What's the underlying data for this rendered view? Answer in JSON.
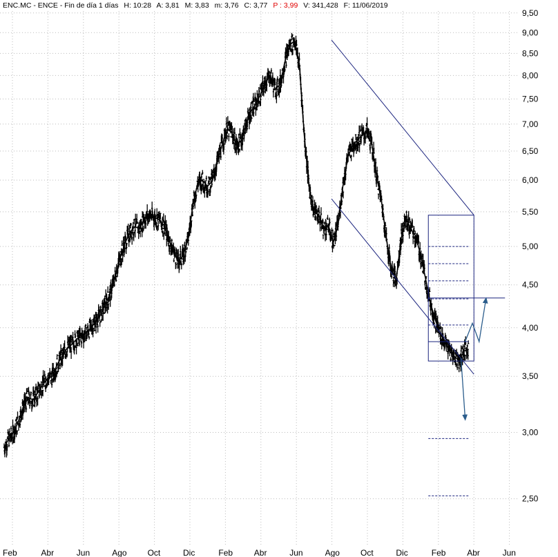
{
  "header": {
    "ticker": "ENC.MC - ENCE - Fin de día 1 días",
    "high": "H: 10:28",
    "ask": "A: 3,81",
    "mid": "M: 3,83",
    "low": "m: 3,76",
    "close": "C: 3,77",
    "price": "P : 3,99",
    "volume": "V: 341,428",
    "date": "F: 11/06/2019"
  },
  "chart_data": {
    "type": "line",
    "title": "",
    "xlabel": "",
    "ylabel": "",
    "y_scale": "log",
    "ylim": [
      2.2,
      9.55
    ],
    "y_ticks": [
      {
        "value": 9.5,
        "label": "9,50"
      },
      {
        "value": 9.0,
        "label": "9,00"
      },
      {
        "value": 8.5,
        "label": "8,50"
      },
      {
        "value": 8.0,
        "label": "8,00"
      },
      {
        "value": 7.5,
        "label": "7,50"
      },
      {
        "value": 7.0,
        "label": "7,00"
      },
      {
        "value": 6.5,
        "label": "6,50"
      },
      {
        "value": 6.0,
        "label": "6,00"
      },
      {
        "value": 5.5,
        "label": "5,50"
      },
      {
        "value": 5.0,
        "label": "5,00"
      },
      {
        "value": 4.5,
        "label": "4,50"
      },
      {
        "value": 4.0,
        "label": "4,00"
      },
      {
        "value": 3.5,
        "label": "3,50"
      },
      {
        "value": 3.0,
        "label": "3,00"
      },
      {
        "value": 2.5,
        "label": "2,50"
      }
    ],
    "x_ticks": [
      "Feb",
      "Abr",
      "Jun",
      "Ago",
      "Oct",
      "Dic",
      "Feb",
      "Abr",
      "Jun",
      "Ago",
      "Oct",
      "Dic",
      "Feb",
      "Abr",
      "Jun"
    ],
    "grid": true,
    "series": [
      {
        "values": [
          2.88,
          2.95,
          3.0,
          3.1,
          3.22,
          3.3,
          3.28,
          3.35,
          3.42,
          3.48,
          3.5,
          3.62,
          3.7,
          3.78,
          3.82,
          3.88,
          3.9,
          3.95,
          4.0,
          4.08,
          4.15,
          4.28,
          4.4,
          4.62,
          4.85,
          5.05,
          5.2,
          5.28,
          5.25,
          5.4,
          5.45,
          5.42,
          5.38,
          5.3,
          5.1,
          4.92,
          4.8,
          4.88,
          5.1,
          5.6,
          5.95,
          6.0,
          5.9,
          5.98,
          6.3,
          6.6,
          6.9,
          6.85,
          6.6,
          6.7,
          7.0,
          7.25,
          7.4,
          7.6,
          7.85,
          8.0,
          7.7,
          7.8,
          8.3,
          8.7,
          8.8,
          8.25,
          6.8,
          5.9,
          5.5,
          5.45,
          5.25,
          5.3,
          5.05,
          5.3,
          5.9,
          6.4,
          6.6,
          6.7,
          6.8,
          6.85,
          6.6,
          6.05,
          5.65,
          5.1,
          4.7,
          4.55,
          5.1,
          5.4,
          5.25,
          5.15,
          4.9,
          4.6,
          4.3,
          4.1,
          3.95,
          3.85,
          3.75,
          3.7,
          3.65,
          3.75,
          3.77
        ]
      }
    ],
    "annotations": {
      "channel_upper": [
        {
          "x": 0.64,
          "y": 8.82
        },
        {
          "x": 0.915,
          "y": 5.45
        }
      ],
      "channel_lower": [
        {
          "x": 0.64,
          "y": 5.7
        },
        {
          "x": 0.915,
          "y": 3.52
        }
      ],
      "box": {
        "x0": 0.827,
        "x1": 0.915,
        "y_top": 5.45,
        "y_bottom": 3.65
      },
      "dotted_levels": [
        5.0,
        4.77,
        4.55,
        4.33,
        4.03,
        2.95,
        2.52
      ],
      "resistance": {
        "x0": 0.827,
        "x1": 0.975,
        "y": 4.34
      },
      "support": {
        "x0": 0.827,
        "x1": 0.905,
        "y": 3.85
      },
      "arrow_down": [
        {
          "x": 0.89,
          "y": 3.68
        },
        {
          "x": 0.898,
          "y": 3.12
        }
      ],
      "arrow_up_path": [
        {
          "x": 0.898,
          "y": 3.85
        },
        {
          "x": 0.912,
          "y": 4.05
        },
        {
          "x": 0.925,
          "y": 3.85
        },
        {
          "x": 0.938,
          "y": 4.32
        }
      ]
    }
  }
}
